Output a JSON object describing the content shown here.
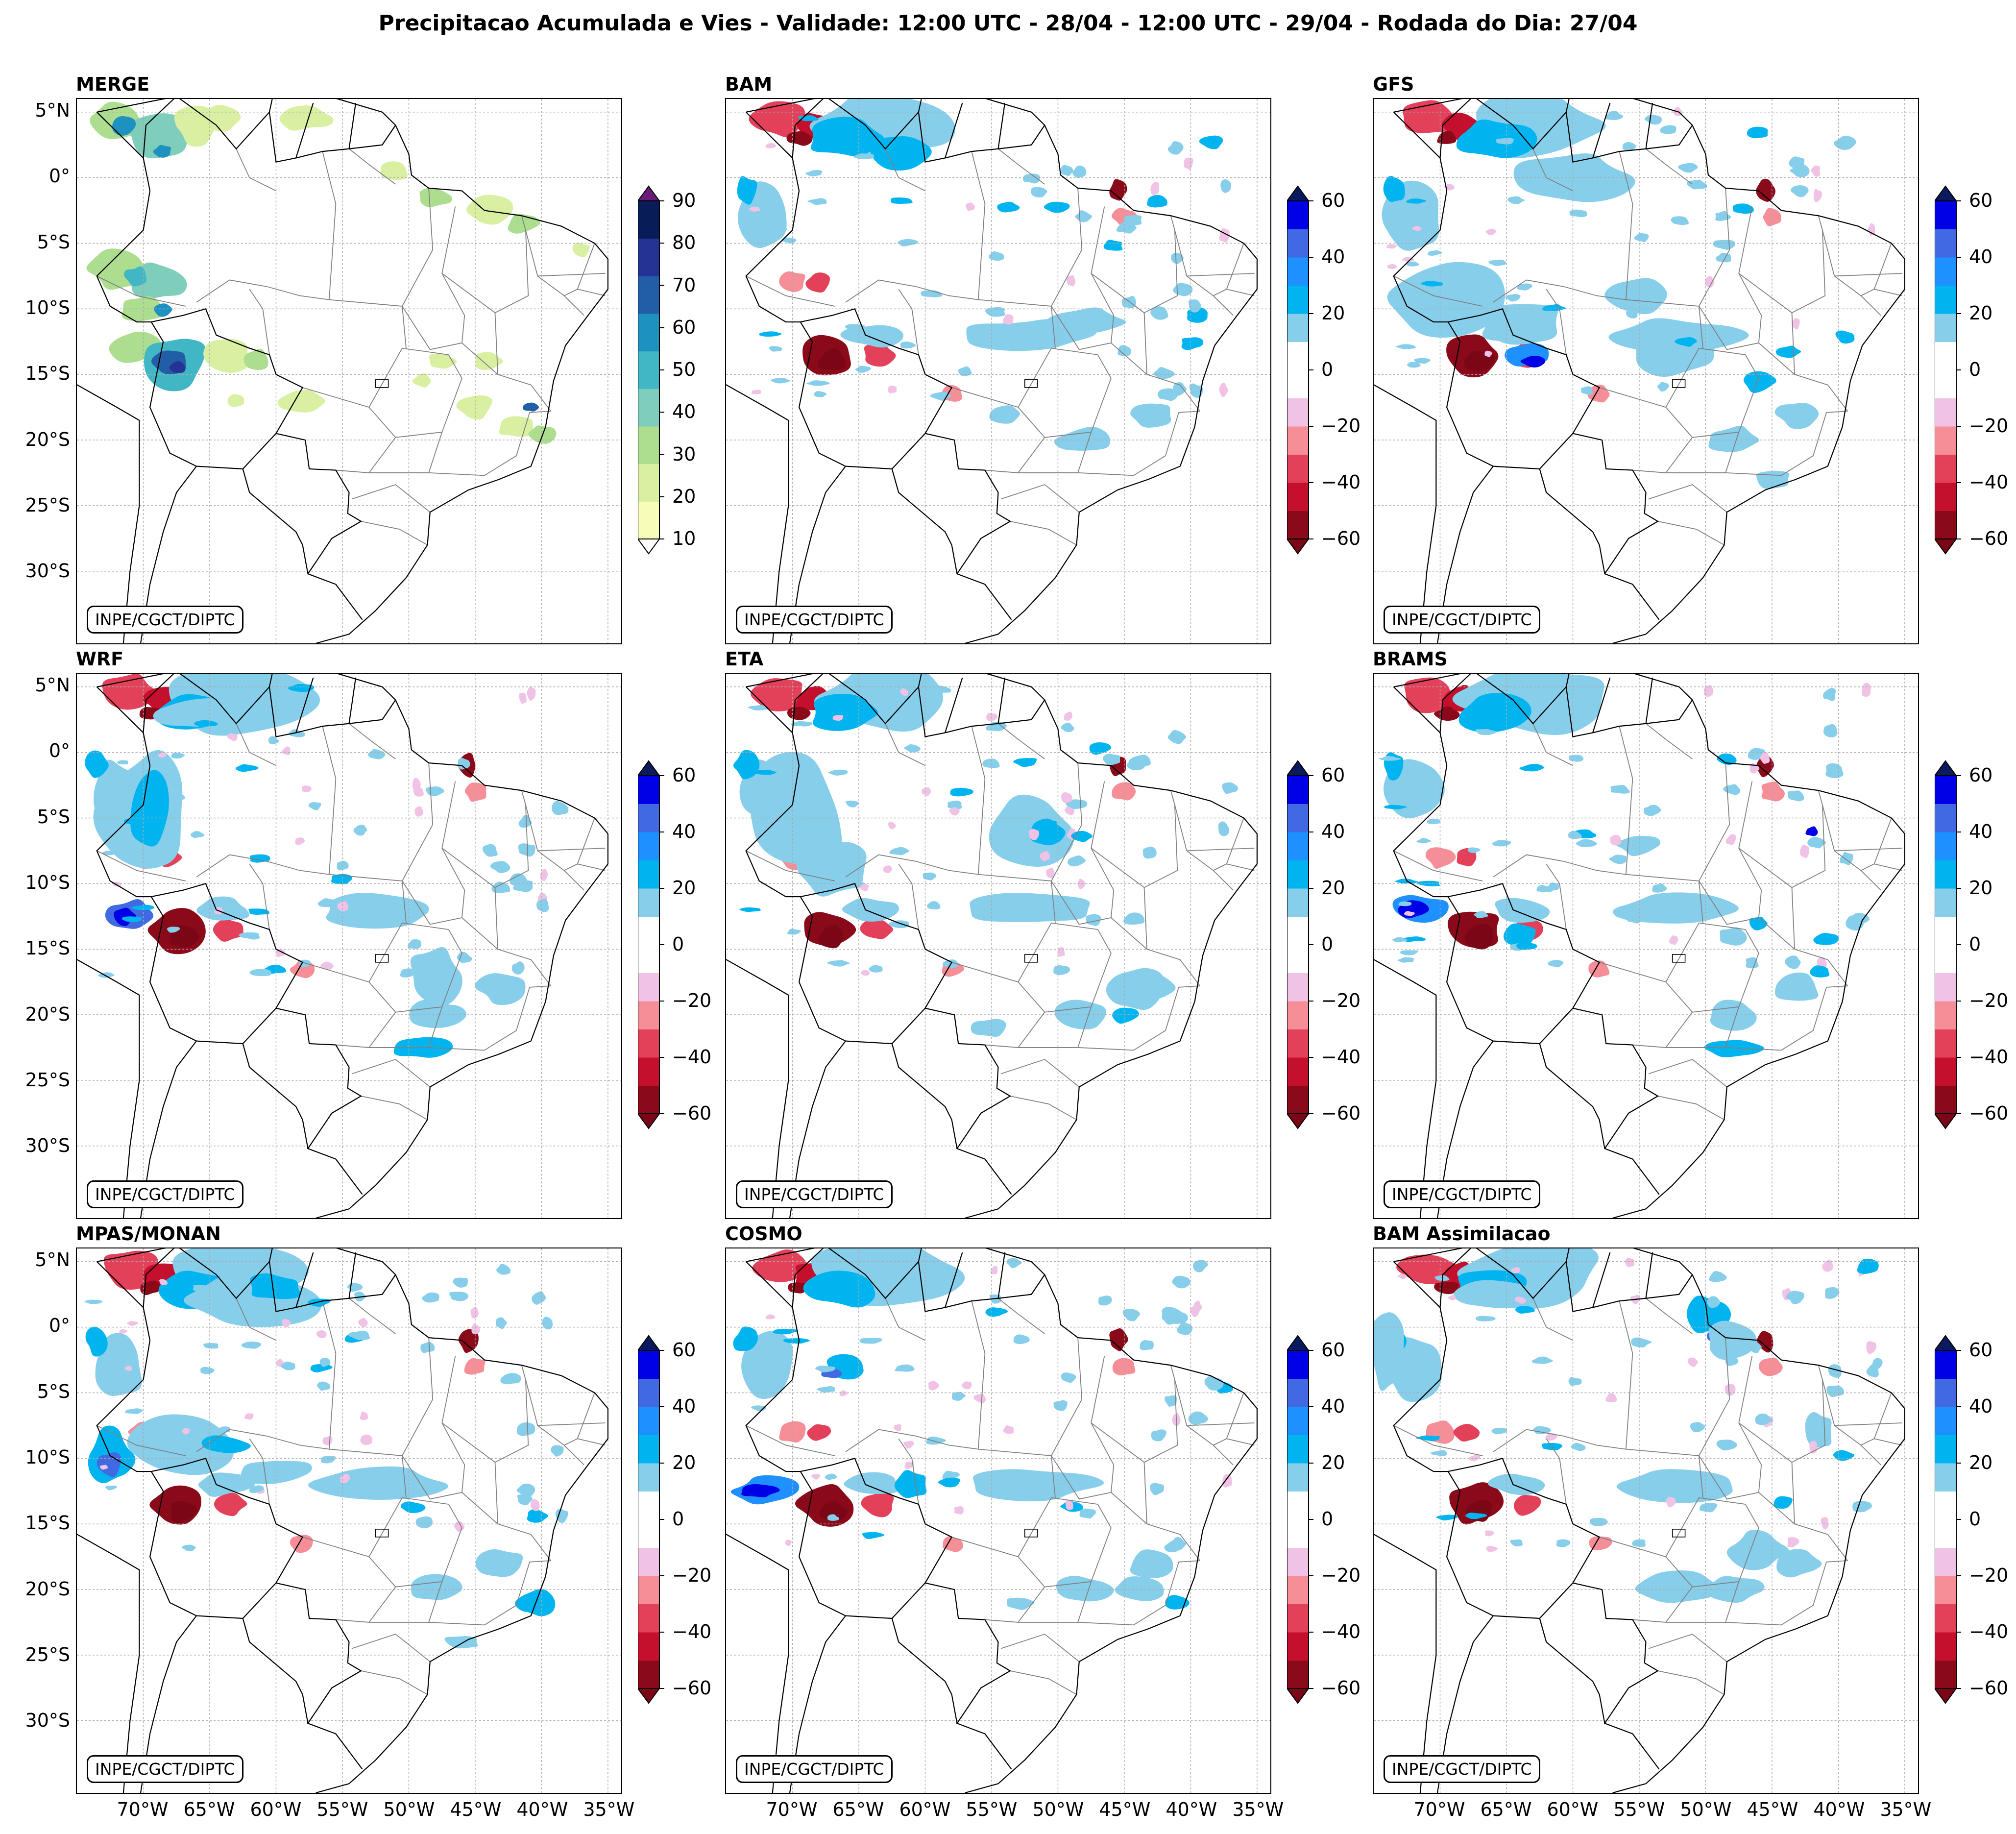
{
  "title": "Precipitacao Acumulada e Vies - Validade: 12:00 UTC - 28/04 - 12:00 UTC - 29/04 - Rodada do Dia: 27/04",
  "credit": "INPE/CGCT/DIPTC",
  "panels": [
    {
      "name": "MERGE",
      "kind": "precip"
    },
    {
      "name": "BAM",
      "kind": "bias"
    },
    {
      "name": "GFS",
      "kind": "bias"
    },
    {
      "name": "WRF",
      "kind": "bias"
    },
    {
      "name": "ETA",
      "kind": "bias"
    },
    {
      "name": "BRAMS",
      "kind": "bias"
    },
    {
      "name": "MPAS/MONAN",
      "kind": "bias"
    },
    {
      "name": "COSMO",
      "kind": "bias"
    },
    {
      "name": "BAM Assimilacao",
      "kind": "bias"
    }
  ],
  "lat_labels": [
    "5°N",
    "0°",
    "5°S",
    "10°S",
    "15°S",
    "20°S",
    "25°S",
    "30°S"
  ],
  "lon_labels": [
    "70°W",
    "65°W",
    "60°W",
    "55°W",
    "50°W",
    "45°W",
    "40°W",
    "35°W"
  ],
  "precip_colorbar": {
    "ticks": [
      "90",
      "80",
      "70",
      "60",
      "50",
      "40",
      "30",
      "20",
      "10"
    ],
    "colors": [
      "#f7fcb9",
      "#d9f0a3",
      "#addd8e",
      "#7fcdbb",
      "#41b6c4",
      "#1d91c0",
      "#225ea8",
      "#253494",
      "#081d58"
    ],
    "under_color": "#ffffff",
    "over_color": "#6a1b7a"
  },
  "bias_colorbar": {
    "ticks": [
      "60",
      "40",
      "20",
      "0",
      "−20",
      "−40",
      "−60"
    ],
    "colors": [
      "#8b0a1a",
      "#c4102d",
      "#e3405a",
      "#f58e96",
      "#f0c3e6",
      "#ffffff",
      "#ffffff",
      "#87ceeb",
      "#00b4f0",
      "#1e90ff",
      "#4169e1",
      "#0000e6"
    ],
    "under_color": "#7a0616",
    "over_color": "#0b1a5c"
  },
  "grid_color": "#aaaaaa",
  "coast_color": "#000000",
  "state_color": "#808080"
}
